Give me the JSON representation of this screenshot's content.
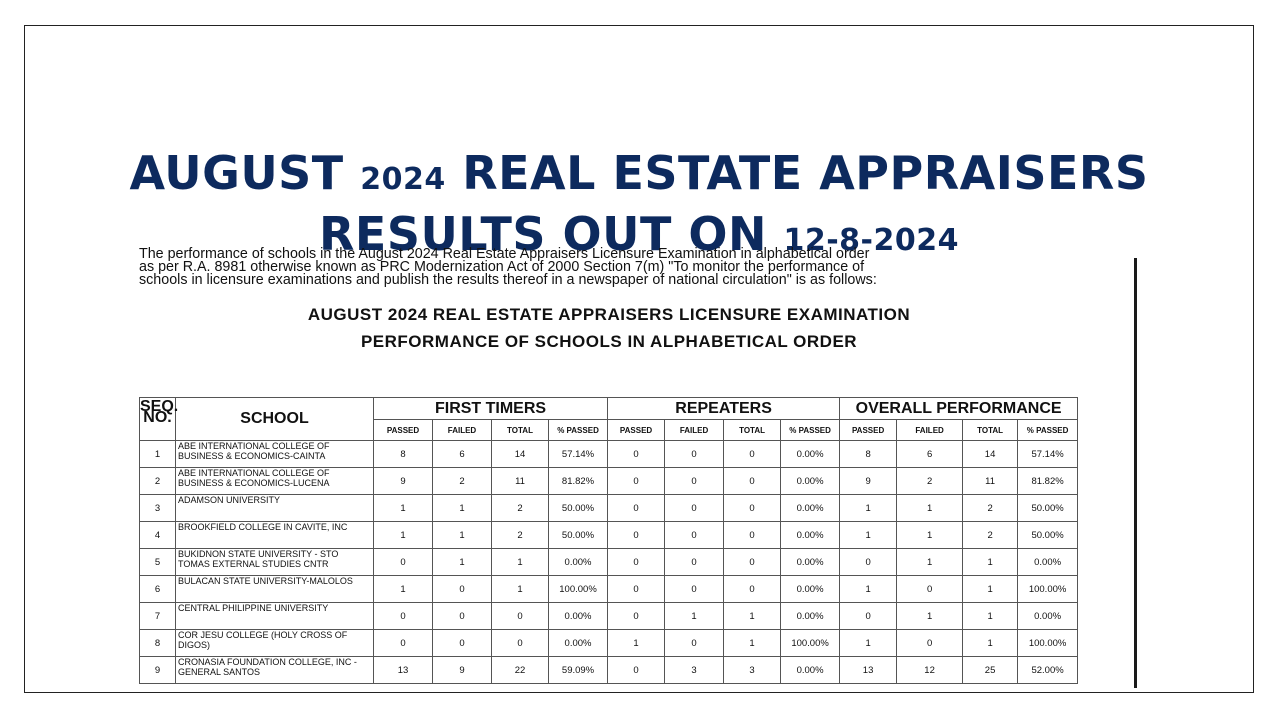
{
  "headline": {
    "line1_a": "AUGUST ",
    "line1_year": "2024",
    "line1_b": " REAL ESTATE APPRAISERS",
    "line2_a": "RESULTS OUT ON ",
    "line2_date": "12-8-2024"
  },
  "document": {
    "intro_lines": [
      "The performance of schools in the August 2024 Real Estate Appraisers Licensure Examination in alphabetical order",
      "as per R.A. 8981 otherwise known as PRC Modernization Act of 2000 Section 7(m) \"To monitor the performance of",
      "schools in licensure examinations and publish the results thereof in a newspaper of national circulation\" is as follows:"
    ],
    "title_line1": "AUGUST 2024 REAL ESTATE APPRAISERS LICENSURE EXAMINATION",
    "title_line2": "PERFORMANCE OF SCHOOLS IN ALPHABETICAL ORDER"
  },
  "table": {
    "seq_header": "SEQ. NO.",
    "school_header": "SCHOOL",
    "groups": [
      "FIRST TIMERS",
      "REPEATERS",
      "OVERALL PERFORMANCE"
    ],
    "sub_headers": [
      "PASSED",
      "FAILED",
      "TOTAL",
      "% PASSED"
    ],
    "rows": [
      {
        "seq": "1",
        "school": "ABE INTERNATIONAL COLLEGE OF BUSINESS & ECONOMICS-CAINTA",
        "cells": [
          "8",
          "6",
          "14",
          "57.14%",
          "0",
          "0",
          "0",
          "0.00%",
          "8",
          "6",
          "14",
          "57.14%"
        ]
      },
      {
        "seq": "2",
        "school": "ABE INTERNATIONAL COLLEGE OF BUSINESS & ECONOMICS-LUCENA",
        "cells": [
          "9",
          "2",
          "11",
          "81.82%",
          "0",
          "0",
          "0",
          "0.00%",
          "9",
          "2",
          "11",
          "81.82%"
        ]
      },
      {
        "seq": "3",
        "school": "ADAMSON UNIVERSITY",
        "cells": [
          "1",
          "1",
          "2",
          "50.00%",
          "0",
          "0",
          "0",
          "0.00%",
          "1",
          "1",
          "2",
          "50.00%"
        ]
      },
      {
        "seq": "4",
        "school": "BROOKFIELD COLLEGE IN CAVITE, INC",
        "cells": [
          "1",
          "1",
          "2",
          "50.00%",
          "0",
          "0",
          "0",
          "0.00%",
          "1",
          "1",
          "2",
          "50.00%"
        ]
      },
      {
        "seq": "5",
        "school": "BUKIDNON STATE UNIVERSITY - STO TOMAS EXTERNAL STUDIES CNTR",
        "cells": [
          "0",
          "1",
          "1",
          "0.00%",
          "0",
          "0",
          "0",
          "0.00%",
          "0",
          "1",
          "1",
          "0.00%"
        ]
      },
      {
        "seq": "6",
        "school": "BULACAN STATE UNIVERSITY-MALOLOS",
        "cells": [
          "1",
          "0",
          "1",
          "100.00%",
          "0",
          "0",
          "0",
          "0.00%",
          "1",
          "0",
          "1",
          "100.00%"
        ]
      },
      {
        "seq": "7",
        "school": "CENTRAL PHILIPPINE UNIVERSITY",
        "cells": [
          "0",
          "0",
          "0",
          "0.00%",
          "0",
          "1",
          "1",
          "0.00%",
          "0",
          "1",
          "1",
          "0.00%"
        ]
      },
      {
        "seq": "8",
        "school": "COR JESU COLLEGE (HOLY CROSS OF DIGOS)",
        "cells": [
          "0",
          "0",
          "0",
          "0.00%",
          "1",
          "0",
          "1",
          "100.00%",
          "1",
          "0",
          "1",
          "100.00%"
        ]
      },
      {
        "seq": "9",
        "school": "CRONASIA FOUNDATION COLLEGE, INC -GENERAL SANTOS",
        "cells": [
          "13",
          "9",
          "22",
          "59.09%",
          "0",
          "3",
          "3",
          "0.00%",
          "13",
          "12",
          "25",
          "52.00%"
        ]
      }
    ]
  }
}
